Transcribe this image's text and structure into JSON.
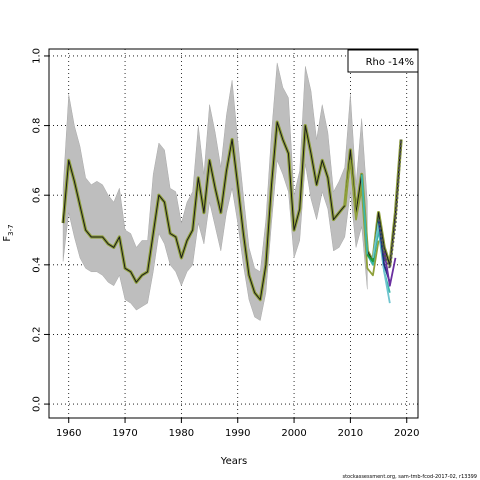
{
  "chart_data": {
    "type": "line",
    "xlabel": "Years",
    "ylabel": "F",
    "ylabel_sub": "3-7",
    "xlim": [
      1956.5,
      2022
    ],
    "ylim": [
      -0.04,
      1.02
    ],
    "x_ticks": [
      1960,
      1970,
      1980,
      1990,
      2000,
      2010,
      2020
    ],
    "y_ticks": [
      0.0,
      0.2,
      0.4,
      0.6,
      0.8,
      1.0
    ],
    "y_tick_labels": [
      "0.0",
      "0.2",
      "0.4",
      "0.6",
      "0.8",
      "1.0"
    ],
    "grid": true,
    "legend_position": "top-right",
    "legend_text": "Rho -14%",
    "footer": "stockassessment.org, sam-tmb-fcod-2017-02, r13399",
    "band": {
      "color": "#bebebe",
      "x": [
        1959,
        1960,
        1961,
        1962,
        1963,
        1964,
        1965,
        1966,
        1967,
        1968,
        1969,
        1970,
        1971,
        1972,
        1973,
        1974,
        1975,
        1976,
        1977,
        1978,
        1979,
        1980,
        1981,
        1982,
        1983,
        1984,
        1985,
        1986,
        1987,
        1988,
        1989,
        1990,
        1991,
        1992,
        1993,
        1994,
        1995,
        1996,
        1997,
        1998,
        1999,
        2000,
        2001,
        2002,
        2003,
        2004,
        2005,
        2006,
        2007,
        2008,
        2009,
        2010,
        2011,
        2012,
        2013
      ],
      "lower": [
        0.41,
        0.55,
        0.48,
        0.42,
        0.39,
        0.38,
        0.38,
        0.37,
        0.35,
        0.34,
        0.37,
        0.3,
        0.29,
        0.27,
        0.28,
        0.29,
        0.38,
        0.49,
        0.46,
        0.4,
        0.38,
        0.34,
        0.38,
        0.4,
        0.52,
        0.46,
        0.58,
        0.51,
        0.44,
        0.55,
        0.62,
        0.52,
        0.4,
        0.3,
        0.25,
        0.24,
        0.32,
        0.52,
        0.7,
        0.66,
        0.61,
        0.42,
        0.47,
        0.69,
        0.59,
        0.53,
        0.61,
        0.56,
        0.44,
        0.45,
        0.48,
        0.61,
        0.45,
        0.51,
        0.33
      ],
      "upper": [
        0.62,
        0.89,
        0.8,
        0.74,
        0.65,
        0.63,
        0.64,
        0.63,
        0.6,
        0.58,
        0.62,
        0.5,
        0.49,
        0.45,
        0.47,
        0.47,
        0.66,
        0.75,
        0.73,
        0.62,
        0.61,
        0.52,
        0.58,
        0.61,
        0.8,
        0.66,
        0.86,
        0.78,
        0.68,
        0.83,
        0.93,
        0.76,
        0.6,
        0.45,
        0.39,
        0.38,
        0.53,
        0.78,
        0.98,
        0.91,
        0.88,
        0.6,
        0.67,
        0.97,
        0.9,
        0.76,
        0.86,
        0.78,
        0.61,
        0.64,
        0.68,
        0.89,
        0.63,
        0.82,
        0.58
      ]
    },
    "series": [
      {
        "color": "#1b1b1b",
        "x": [
          1959,
          1960,
          1961,
          1962,
          1963,
          1964,
          1965,
          1966,
          1967,
          1968,
          1969,
          1970,
          1971,
          1972,
          1973,
          1974,
          1975,
          1976,
          1977,
          1978,
          1979,
          1980,
          1981,
          1982,
          1983,
          1984,
          1985,
          1986,
          1987,
          1988,
          1989,
          1990,
          1991,
          1992,
          1993,
          1994,
          1995,
          1996,
          1997,
          1998,
          1999,
          2000,
          2001,
          2002,
          2003,
          2004,
          2005,
          2006,
          2007,
          2008,
          2009,
          2010,
          2011,
          2012,
          2013,
          2014,
          2015,
          2016,
          2017,
          2018,
          2019
        ],
        "values": [
          0.52,
          0.7,
          0.64,
          0.57,
          0.5,
          0.48,
          0.48,
          0.48,
          0.46,
          0.45,
          0.48,
          0.39,
          0.38,
          0.35,
          0.37,
          0.38,
          0.49,
          0.6,
          0.58,
          0.49,
          0.48,
          0.42,
          0.47,
          0.5,
          0.65,
          0.55,
          0.7,
          0.62,
          0.55,
          0.67,
          0.76,
          0.63,
          0.49,
          0.37,
          0.32,
          0.3,
          0.4,
          0.63,
          0.81,
          0.76,
          0.72,
          0.5,
          0.56,
          0.8,
          0.72,
          0.63,
          0.7,
          0.65,
          0.53,
          0.55,
          0.57,
          0.73,
          0.55,
          0.66,
          0.44,
          0.41,
          0.55,
          0.45,
          0.4,
          0.55,
          0.76
        ]
      },
      {
        "color": "#8fa03a",
        "x": [
          2009,
          2010,
          2011,
          2012,
          2013,
          2014,
          2015
        ],
        "values": [
          0.57,
          0.7,
          0.53,
          0.62,
          0.39,
          0.37,
          0.47
        ]
      },
      {
        "color": "#3bb7a8",
        "x": [
          2012,
          2013,
          2014,
          2015,
          2016,
          2017
        ],
        "values": [
          0.66,
          0.43,
          0.4,
          0.5,
          0.38,
          0.32
        ]
      },
      {
        "color": "#1f9a3c",
        "x": [
          2013,
          2014,
          2015,
          2016
        ],
        "values": [
          0.43,
          0.41,
          0.53,
          0.41
        ]
      },
      {
        "color": "#6fc4cf",
        "x": [
          2014,
          2015,
          2016,
          2017
        ],
        "values": [
          0.42,
          0.52,
          0.38,
          0.29
        ]
      },
      {
        "color": "#1c2f80",
        "x": [
          2015,
          2016,
          2017
        ],
        "values": [
          0.53,
          0.4,
          0.35
        ]
      },
      {
        "color": "#6a2fa0",
        "x": [
          2016,
          2017,
          2018
        ],
        "values": [
          0.44,
          0.34,
          0.42
        ]
      },
      {
        "color": "#555555",
        "dashed": true,
        "x": [
          2015,
          2016,
          2017,
          2018,
          2019
        ],
        "values": [
          0.53,
          0.43,
          0.39,
          0.52,
          0.76
        ]
      }
    ]
  }
}
